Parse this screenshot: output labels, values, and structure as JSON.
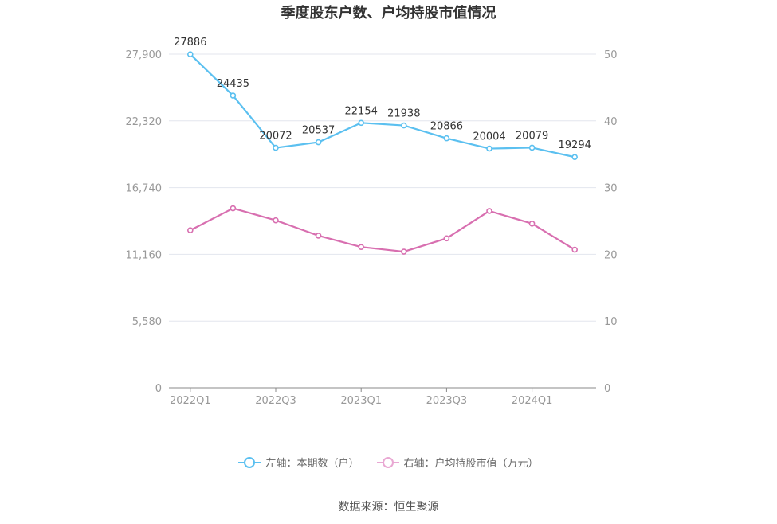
{
  "chart_data": {
    "type": "line",
    "title": "季度股东户数、户均持股市值情况",
    "categories": [
      "2022Q1",
      "2022Q2",
      "2022Q3",
      "2022Q4",
      "2023Q1",
      "2023Q2",
      "2023Q3",
      "2023Q4",
      "2024Q1",
      "2024Q2"
    ],
    "x_tick_labels": [
      "2022Q1",
      "2022Q3",
      "2023Q1",
      "2023Q3",
      "2024Q1"
    ],
    "left_axis": {
      "ylim": [
        0,
        27900
      ],
      "ticks": [
        "0",
        "5,580",
        "11,160",
        "16,740",
        "22,320",
        "27,900"
      ]
    },
    "right_axis": {
      "ylim": [
        0,
        50
      ],
      "ticks": [
        "0",
        "10",
        "20",
        "30",
        "40",
        "50"
      ]
    },
    "series": [
      {
        "name": "左轴：本期数（户）",
        "axis": "left",
        "color": "#5bc0f0",
        "values": [
          27886,
          24435,
          20072,
          20537,
          22154,
          21938,
          20866,
          20004,
          20079,
          19294
        ],
        "labels": [
          "27886",
          "24435",
          "20072",
          "20537",
          "22154",
          "21938",
          "20866",
          "20004",
          "20079",
          "19294"
        ]
      },
      {
        "name": "右轴：户均持股市值（万元）",
        "axis": "right",
        "color": "#d86fb0",
        "values": [
          23.6,
          26.9,
          25.1,
          22.8,
          21.1,
          20.4,
          22.4,
          26.5,
          24.6,
          20.7
        ]
      }
    ],
    "grid": true,
    "legend": "bottom"
  },
  "source": "数据来源：恒生聚源"
}
